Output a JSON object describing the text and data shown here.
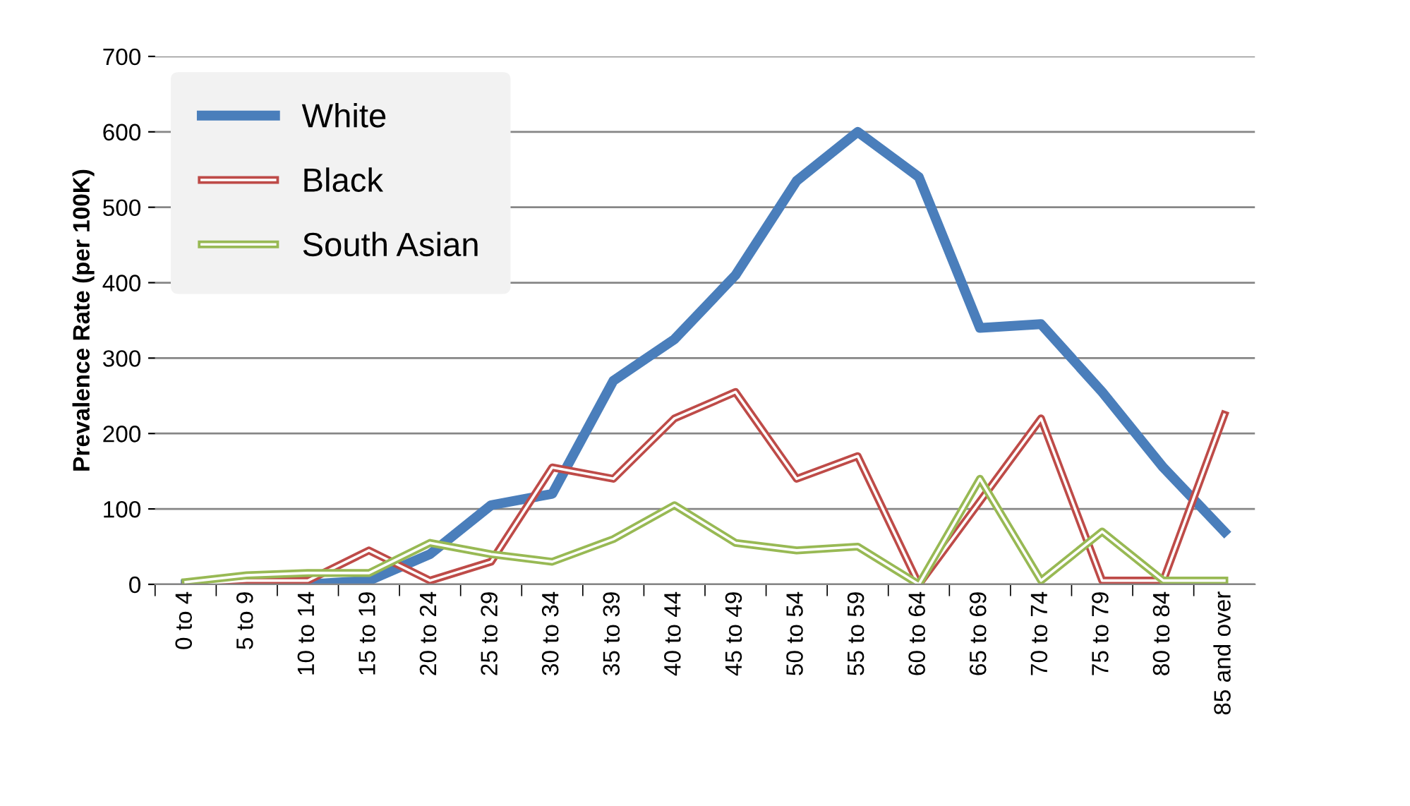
{
  "chart_data": {
    "type": "line",
    "ylabel": "Prevalence Rate (per 100K)",
    "categories": [
      "0 to 4",
      "5 to 9",
      "10 to 14",
      "15 to 19",
      "20 to 24",
      "25 to 29",
      "30 to 34",
      "35 to 39",
      "40 to 44",
      "45 to 49",
      "50 to 54",
      "55 to 59",
      "60 to 64",
      "65 to 69",
      "70 to 74",
      "75 to 79",
      "80 to 84",
      "85 and over"
    ],
    "series": [
      {
        "name": "White",
        "color": "#4a7ebb",
        "values": [
          0,
          0,
          0,
          5,
          40,
          105,
          120,
          270,
          325,
          410,
          535,
          600,
          540,
          340,
          345,
          255,
          155,
          70
        ]
      },
      {
        "name": "Black",
        "color": "#be4b48",
        "values": [
          0,
          5,
          5,
          45,
          5,
          30,
          155,
          140,
          220,
          255,
          140,
          170,
          0,
          110,
          220,
          5,
          5,
          225
        ]
      },
      {
        "name": "South Asian",
        "color": "#98b954",
        "values": [
          3,
          12,
          15,
          15,
          55,
          40,
          30,
          60,
          105,
          55,
          45,
          50,
          0,
          140,
          5,
          70,
          5,
          5
        ]
      }
    ],
    "ylim": [
      0,
      700
    ],
    "yticks": [
      0,
      100,
      200,
      300,
      400,
      500,
      600,
      700
    ],
    "grid": "y",
    "legend": "top left",
    "marker": "none",
    "line_style": "solid"
  }
}
